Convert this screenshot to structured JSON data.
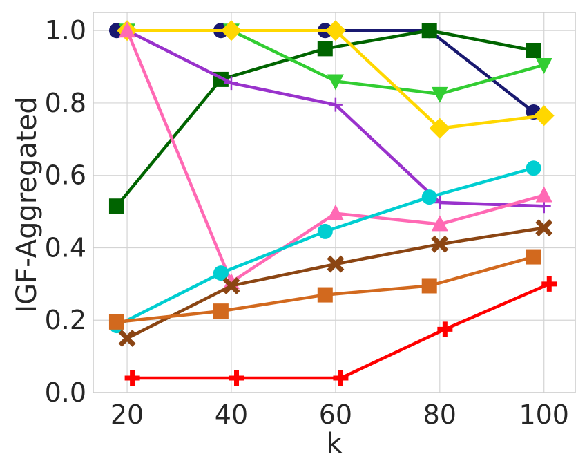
{
  "chart_data": {
    "type": "line",
    "xlabel": "k",
    "ylabel": "IGF-Aggregated",
    "xlim": [
      13.5,
      106
    ],
    "ylim": [
      0,
      1.05
    ],
    "xticks": [
      20,
      40,
      60,
      80,
      100
    ],
    "yticks": [
      0.0,
      0.2,
      0.4,
      0.6,
      0.8,
      1.0
    ],
    "xtick_labels": [
      "20",
      "40",
      "60",
      "80",
      "100"
    ],
    "ytick_labels": [
      "0.0",
      "0.2",
      "0.4",
      "0.6",
      "0.8",
      "1.0"
    ],
    "grid": true,
    "series": [
      {
        "color": "#191970",
        "marker": "circle",
        "x": [
          18,
          38,
          58,
          78,
          98
        ],
        "y": [
          1.0,
          1.0,
          1.0,
          1.0,
          0.775
        ]
      },
      {
        "color": "#006400",
        "marker": "square",
        "x": [
          18,
          38,
          58,
          78,
          98
        ],
        "y": [
          0.515,
          0.865,
          0.95,
          1.0,
          0.945
        ]
      },
      {
        "color": "#32cd32",
        "marker": "tri_down",
        "x": [
          20,
          40,
          60,
          80,
          100
        ],
        "y": [
          1.0,
          1.0,
          0.86,
          0.825,
          0.905
        ]
      },
      {
        "color": "#9932cc",
        "marker": "plus",
        "x": [
          20,
          40,
          60,
          80,
          100
        ],
        "y": [
          1.0,
          0.855,
          0.795,
          0.525,
          0.515
        ]
      },
      {
        "color": "#ffd700",
        "marker": "diamond",
        "x": [
          20,
          40,
          60,
          80,
          100
        ],
        "y": [
          1.0,
          1.0,
          1.0,
          0.73,
          0.765
        ]
      },
      {
        "color": "#ff69b4",
        "marker": "tri_up",
        "x": [
          20,
          40,
          60,
          80,
          100
        ],
        "y": [
          1.0,
          0.305,
          0.495,
          0.465,
          0.545
        ]
      },
      {
        "color": "#00ced1",
        "marker": "circle",
        "x": [
          18,
          38,
          58,
          78,
          98
        ],
        "y": [
          0.185,
          0.33,
          0.445,
          0.54,
          0.62
        ]
      },
      {
        "color": "#8b4513",
        "marker": "x",
        "x": [
          20,
          40,
          60,
          80,
          100
        ],
        "y": [
          0.15,
          0.295,
          0.355,
          0.41,
          0.455
        ]
      },
      {
        "color": "#d2691e",
        "marker": "square",
        "x": [
          18,
          38,
          58,
          78,
          98
        ],
        "y": [
          0.195,
          0.225,
          0.27,
          0.295,
          0.375
        ]
      },
      {
        "color": "#ff0000",
        "marker": "plus_thick",
        "x": [
          21,
          41,
          61,
          81,
          101
        ],
        "y": [
          0.04,
          0.04,
          0.04,
          0.175,
          0.3
        ]
      }
    ]
  }
}
